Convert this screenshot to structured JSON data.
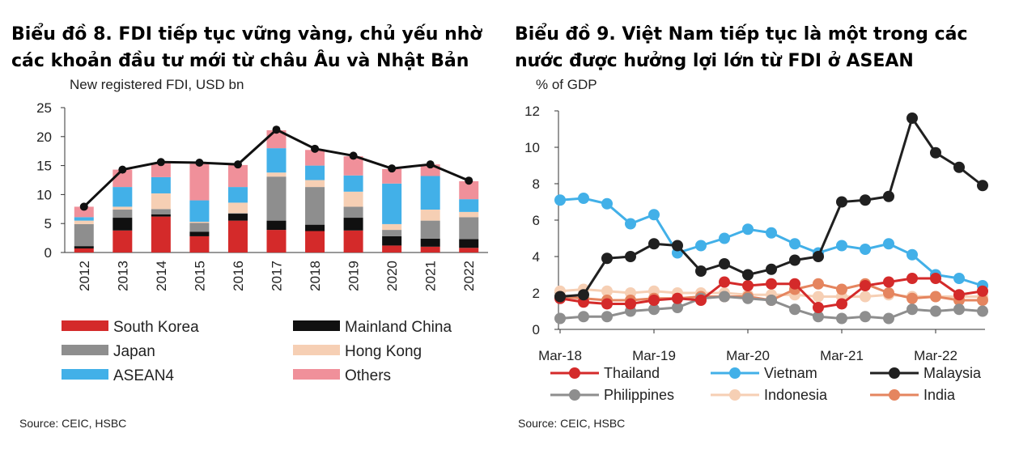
{
  "chart_data": [
    {
      "type": "bar",
      "stacked": true,
      "title_lines": [
        "Biểu đồ 8. FDI tiếp tục vững vàng, chủ yếu nhờ",
        "các khoản đầu tư mới từ châu Âu và Nhật Bản"
      ],
      "ylabel": "New registered  FDI, USD bn",
      "ylim": [
        0,
        25
      ],
      "yticks": [
        "0",
        "5",
        "10",
        "15",
        "20",
        "25"
      ],
      "categories": [
        "2012",
        "2013",
        "2014",
        "2015",
        "2016",
        "2017",
        "2018",
        "2019",
        "2020",
        "2021",
        "2022"
      ],
      "series": [
        {
          "name": "South Korea",
          "color": "#d42a2a",
          "values": [
            0.7,
            3.8,
            6.2,
            2.8,
            5.5,
            3.9,
            3.7,
            3.8,
            1.2,
            1.0,
            0.8
          ]
        },
        {
          "name": "Mainland China",
          "color": "#101010",
          "values": [
            0.4,
            2.2,
            0.4,
            0.8,
            1.2,
            1.6,
            1.1,
            2.2,
            1.6,
            1.4,
            1.5
          ]
        },
        {
          "name": "Japan",
          "color": "#8e8e8e",
          "values": [
            3.8,
            1.4,
            0.9,
            1.5,
            0.1,
            7.6,
            6.5,
            1.9,
            1.1,
            3.1,
            3.8
          ]
        },
        {
          "name": "Hong Kong",
          "color": "#f6cfb4",
          "values": [
            0.6,
            0.5,
            2.7,
            0.2,
            1.8,
            0.7,
            1.2,
            2.6,
            1.0,
            1.9,
            0.9
          ]
        },
        {
          "name": "ASEAN4",
          "color": "#42b0e8",
          "values": [
            0.6,
            3.4,
            2.8,
            3.7,
            2.7,
            4.2,
            2.5,
            2.8,
            7.0,
            5.8,
            2.2
          ]
        },
        {
          "name": "Others",
          "color": "#f0909a",
          "values": [
            1.8,
            3.0,
            2.4,
            6.3,
            3.8,
            3.1,
            2.7,
            3.3,
            2.5,
            2.0,
            3.1
          ]
        }
      ],
      "total_line": {
        "color": "#101010",
        "values": [
          7.9,
          14.3,
          15.6,
          15.5,
          15.2,
          21.2,
          17.9,
          16.7,
          14.5,
          15.2,
          12.4
        ]
      },
      "source": "Source: CEIC, HSBC"
    },
    {
      "type": "line",
      "title_lines": [
        "Biểu đồ 9. Việt Nam tiếp tục là một trong các",
        "nước được hưởng lợi lớn từ FDI ở ASEAN"
      ],
      "ylabel": "% of GDP",
      "ylim": [
        0,
        12
      ],
      "yticks": [
        "0",
        "2",
        "4",
        "6",
        "8",
        "10",
        "12"
      ],
      "x": [
        "Mar-18",
        "Jun-18",
        "Sep-18",
        "Dec-18",
        "Mar-19",
        "Jun-19",
        "Sep-19",
        "Dec-19",
        "Mar-20",
        "Jun-20",
        "Sep-20",
        "Dec-20",
        "Mar-21",
        "Jun-21",
        "Sep-21",
        "Dec-21",
        "Mar-22",
        "Jun-22",
        "Sep-22"
      ],
      "xticks": [
        "Mar-18",
        "Mar-19",
        "Mar-20",
        "Mar-21",
        "Mar-22"
      ],
      "series": [
        {
          "name": "Thailand",
          "color": "#d42a2a",
          "values": [
            1.7,
            1.5,
            1.4,
            1.4,
            1.6,
            1.7,
            1.6,
            2.6,
            2.4,
            2.5,
            2.5,
            1.2,
            1.4,
            2.4,
            2.6,
            2.8,
            2.8,
            1.9,
            2.1
          ]
        },
        {
          "name": "Vietnam",
          "color": "#42b0e8",
          "values": [
            7.1,
            7.2,
            6.9,
            5.8,
            6.3,
            4.2,
            4.6,
            5.0,
            5.5,
            5.3,
            4.7,
            4.2,
            4.6,
            4.4,
            4.7,
            4.1,
            3.0,
            2.8,
            2.4
          ]
        },
        {
          "name": "Malaysia",
          "color": "#202020",
          "values": [
            1.8,
            1.9,
            3.9,
            4.0,
            4.7,
            4.6,
            3.2,
            3.6,
            3.0,
            3.3,
            3.8,
            4.0,
            7.0,
            7.1,
            7.3,
            11.6,
            9.7,
            8.9,
            7.9
          ]
        },
        {
          "name": "Philippines",
          "color": "#8e8e8e",
          "values": [
            0.6,
            0.7,
            0.7,
            1.0,
            1.1,
            1.2,
            1.7,
            1.8,
            1.7,
            1.6,
            1.1,
            0.7,
            0.6,
            0.7,
            0.6,
            1.1,
            1.0,
            1.1,
            1.0
          ]
        },
        {
          "name": "Indonesia",
          "color": "#f6cfb4",
          "values": [
            2.1,
            2.2,
            2.1,
            2.0,
            2.1,
            2.0,
            2.0,
            2.0,
            1.9,
            1.9,
            1.9,
            1.8,
            1.8,
            1.8,
            1.9,
            1.8,
            1.8,
            1.8,
            1.8
          ]
        },
        {
          "name": "India",
          "color": "#e5855f",
          "values": [
            1.8,
            1.7,
            1.6,
            1.6,
            1.7,
            1.7,
            1.8,
            1.8,
            1.8,
            1.6,
            2.2,
            2.5,
            2.2,
            2.5,
            2.0,
            1.7,
            1.8,
            1.6,
            1.6
          ]
        }
      ],
      "source": "Source: CEIC, HSBC"
    }
  ]
}
